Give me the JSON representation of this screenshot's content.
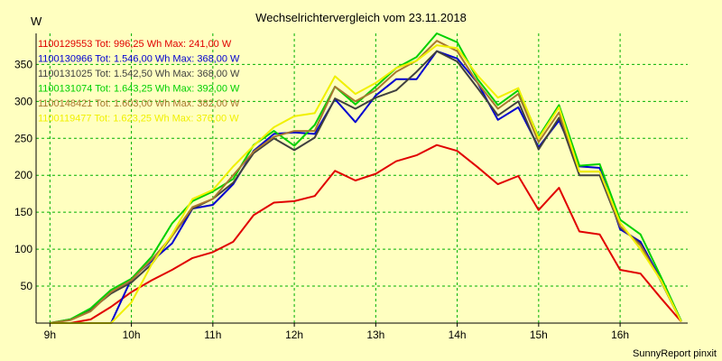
{
  "chart_data": {
    "type": "line",
    "title": "Wechselrichtervergleich vom 23.11.2018",
    "ylabel": "W",
    "xlabel": "",
    "footer": "SunnyReport pinxit",
    "ylim": [
      0,
      392
    ],
    "y_ticks": [
      50,
      100,
      150,
      200,
      250,
      300,
      350
    ],
    "xlim": [
      8.83,
      16.83
    ],
    "x_ticks": [
      {
        "value": 9,
        "label": "9h"
      },
      {
        "value": 10,
        "label": "10h"
      },
      {
        "value": 11,
        "label": "11h"
      },
      {
        "value": 12,
        "label": "12h"
      },
      {
        "value": 13,
        "label": "13h"
      },
      {
        "value": 14,
        "label": "14h"
      },
      {
        "value": 15,
        "label": "15h"
      },
      {
        "value": 16,
        "label": "16h"
      }
    ],
    "grid": true,
    "x": [
      9.0,
      9.25,
      9.5,
      9.75,
      10.0,
      10.25,
      10.5,
      10.75,
      11.0,
      11.25,
      11.5,
      11.75,
      12.0,
      12.25,
      12.5,
      12.75,
      13.0,
      13.25,
      13.5,
      13.75,
      14.0,
      14.25,
      14.5,
      14.75,
      15.0,
      15.25,
      15.5,
      15.75,
      16.0,
      16.25,
      16.5,
      16.75
    ],
    "series": [
      {
        "name": "1100129553",
        "legend": "1100129553 Tot: 996,25 Wh Max: 241,00 W",
        "color": "#e00000",
        "values": [
          0,
          0,
          5,
          22,
          42,
          58,
          72,
          88,
          96,
          110,
          146,
          163,
          165,
          172,
          206,
          193,
          202,
          219,
          227,
          241,
          233,
          211,
          188,
          199,
          153,
          183,
          124,
          120,
          72,
          67,
          34,
          2
        ]
      },
      {
        "name": "1100130966",
        "legend": "1100130966 Tot: 1.546,00 Wh Max: 368,00 W",
        "color": "#0000d0",
        "values": [
          0,
          0,
          0,
          0,
          60,
          84,
          108,
          155,
          160,
          188,
          233,
          256,
          258,
          256,
          303,
          272,
          308,
          330,
          330,
          368,
          358,
          325,
          275,
          292,
          238,
          274,
          212,
          210,
          127,
          110,
          59,
          2
        ]
      },
      {
        "name": "1100131025",
        "legend": "1100131025 Tot: 1.542,50 Wh Max: 368,00 W",
        "color": "#404040",
        "values": [
          0,
          5,
          18,
          40,
          55,
          80,
          118,
          155,
          168,
          190,
          230,
          250,
          234,
          251,
          304,
          290,
          305,
          315,
          340,
          368,
          354,
          318,
          281,
          300,
          235,
          278,
          200,
          200,
          130,
          107,
          57,
          2
        ]
      },
      {
        "name": "1100131074",
        "legend": "1100131074 Tot: 1.643,25 Wh Max: 392,00 W",
        "color": "#00d000",
        "values": [
          0,
          5,
          20,
          45,
          60,
          90,
          135,
          165,
          178,
          195,
          241,
          260,
          240,
          268,
          320,
          296,
          320,
          345,
          360,
          392,
          380,
          330,
          295,
          315,
          252,
          295,
          213,
          215,
          140,
          120,
          63,
          3
        ]
      },
      {
        "name": "1100148421",
        "legend": "1100148421 Tot: 1.603,00 Wh Max: 382,00 W",
        "color": "#a87830",
        "values": [
          0,
          4,
          16,
          42,
          58,
          86,
          118,
          157,
          168,
          200,
          232,
          252,
          260,
          260,
          320,
          300,
          315,
          340,
          355,
          382,
          368,
          325,
          290,
          310,
          245,
          285,
          205,
          205,
          131,
          105,
          58,
          2
        ]
      },
      {
        "name": "1100119477",
        "legend": "1100119477 Tot: 1.623,25 Wh Max: 376,00 W",
        "color": "#f0f000",
        "values": [
          0,
          0,
          0,
          0,
          28,
          80,
          120,
          168,
          180,
          212,
          240,
          265,
          280,
          284,
          334,
          310,
          325,
          345,
          355,
          376,
          372,
          335,
          305,
          318,
          250,
          292,
          205,
          205,
          136,
          100,
          58,
          2
        ]
      }
    ]
  }
}
